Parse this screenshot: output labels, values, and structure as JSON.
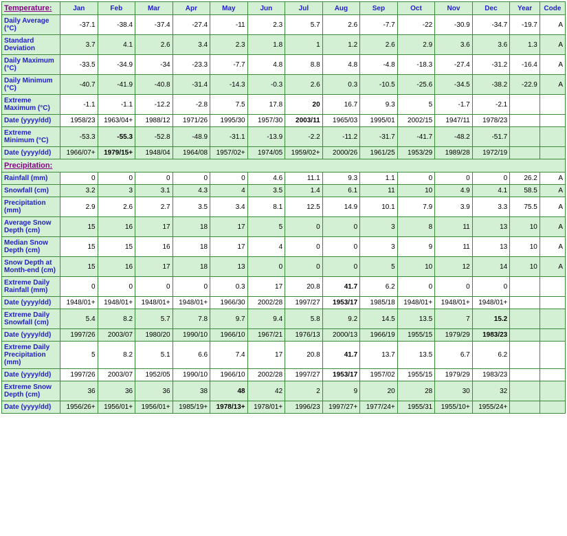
{
  "columns": [
    "Jan",
    "Feb",
    "Mar",
    "Apr",
    "May",
    "Jun",
    "Jul",
    "Aug",
    "Sep",
    "Oct",
    "Nov",
    "Dec",
    "Year",
    "Code"
  ],
  "sections": [
    {
      "title": "Temperature:",
      "class": "temp"
    },
    {
      "title": "Precipitation:",
      "class": "precip"
    }
  ],
  "temp_rows": [
    {
      "label": "Daily Average (°C)",
      "alt": true,
      "bold_idx": [],
      "vals": [
        "-37.1",
        "-38.4",
        "-37.4",
        "-27.4",
        "-11",
        "2.3",
        "5.7",
        "2.6",
        "-7.7",
        "-22",
        "-30.9",
        "-34.7",
        "-19.7",
        "A"
      ]
    },
    {
      "label": "Standard Deviation",
      "alt": true,
      "bold_idx": [],
      "vals": [
        "3.7",
        "4.1",
        "2.6",
        "3.4",
        "2.3",
        "1.8",
        "1",
        "1.2",
        "2.6",
        "2.9",
        "3.6",
        "3.6",
        "1.3",
        "A"
      ],
      "shade": true
    },
    {
      "label": "Daily Maximum (°C)",
      "alt": true,
      "bold_idx": [],
      "vals": [
        "-33.5",
        "-34.9",
        "-34",
        "-23.3",
        "-7.7",
        "4.8",
        "8.8",
        "4.8",
        "-4.8",
        "-18.3",
        "-27.4",
        "-31.2",
        "-16.4",
        "A"
      ]
    },
    {
      "label": "Daily Minimum (°C)",
      "alt": true,
      "bold_idx": [],
      "vals": [
        "-40.7",
        "-41.9",
        "-40.8",
        "-31.4",
        "-14.3",
        "-0.3",
        "2.6",
        "0.3",
        "-10.5",
        "-25.6",
        "-34.5",
        "-38.2",
        "-22.9",
        "A"
      ],
      "shade": true,
      "thick": true
    },
    {
      "label": "Extreme Maximum (°C)",
      "alt": false,
      "bold_idx": [
        6
      ],
      "vals": [
        "-1.1",
        "-1.1",
        "-12.2",
        "-2.8",
        "7.5",
        "17.8",
        "20",
        "16.7",
        "9.3",
        "5",
        "-1.7",
        "-2.1",
        "",
        ""
      ]
    },
    {
      "label": "Date (yyyy/dd)",
      "alt": false,
      "bold_idx": [
        6
      ],
      "vals": [
        "1958/23",
        "1963/04+",
        "1988/12",
        "1971/26",
        "1995/30",
        "1957/30",
        "2003/11",
        "1965/03",
        "1995/01",
        "2002/15",
        "1947/11",
        "1978/23",
        "",
        ""
      ]
    },
    {
      "label": "Extreme Minimum (°C)",
      "alt": false,
      "bold_idx": [
        1
      ],
      "vals": [
        "-53.3",
        "-55.3",
        "-52.8",
        "-48.9",
        "-31.1",
        "-13.9",
        "-2.2",
        "-11.2",
        "-31.7",
        "-41.7",
        "-48.2",
        "-51.7",
        "",
        ""
      ],
      "shade": true
    },
    {
      "label": "Date (yyyy/dd)",
      "alt": false,
      "bold_idx": [
        1
      ],
      "vals": [
        "1966/07+",
        "1979/15+",
        "1948/04",
        "1964/08",
        "1957/02+",
        "1974/05",
        "1959/02+",
        "2000/26",
        "1961/25",
        "1953/29",
        "1989/28",
        "1972/19",
        "",
        ""
      ],
      "shade": true,
      "thick": true
    }
  ],
  "precip_rows": [
    {
      "label": "Rainfall (mm)",
      "bold_idx": [],
      "vals": [
        "0",
        "0",
        "0",
        "0",
        "0",
        "4.6",
        "11.1",
        "9.3",
        "1.1",
        "0",
        "0",
        "0",
        "26.2",
        "A"
      ]
    },
    {
      "label": "Snowfall (cm)",
      "bold_idx": [],
      "vals": [
        "3.2",
        "3",
        "3.1",
        "4.3",
        "4",
        "3.5",
        "1.4",
        "6.1",
        "11",
        "10",
        "4.9",
        "4.1",
        "58.5",
        "A"
      ],
      "shade": true
    },
    {
      "label": "Precipitation (mm)",
      "bold_idx": [],
      "vals": [
        "2.9",
        "2.6",
        "2.7",
        "3.5",
        "3.4",
        "8.1",
        "12.5",
        "14.9",
        "10.1",
        "7.9",
        "3.9",
        "3.3",
        "75.5",
        "A"
      ]
    },
    {
      "label": "Average Snow Depth (cm)",
      "bold_idx": [],
      "vals": [
        "15",
        "16",
        "17",
        "18",
        "17",
        "5",
        "0",
        "0",
        "3",
        "8",
        "11",
        "13",
        "10",
        "A"
      ],
      "shade": true
    },
    {
      "label": "Median Snow Depth (cm)",
      "bold_idx": [],
      "vals": [
        "15",
        "15",
        "16",
        "18",
        "17",
        "4",
        "0",
        "0",
        "3",
        "9",
        "11",
        "13",
        "10",
        "A"
      ]
    },
    {
      "label": "Snow Depth at Month-end (cm)",
      "bold_idx": [],
      "vals": [
        "15",
        "16",
        "17",
        "18",
        "13",
        "0",
        "0",
        "0",
        "5",
        "10",
        "12",
        "14",
        "10",
        "A"
      ],
      "shade": true,
      "thick": true
    },
    {
      "label": "Extreme Daily Rainfall (mm)",
      "bold_idx": [
        7
      ],
      "vals": [
        "0",
        "0",
        "0",
        "0",
        "0.3",
        "17",
        "20.8",
        "41.7",
        "6.2",
        "0",
        "0",
        "0",
        "",
        ""
      ]
    },
    {
      "label": "Date (yyyy/dd)",
      "bold_idx": [
        7
      ],
      "vals": [
        "1948/01+",
        "1948/01+",
        "1948/01+",
        "1948/01+",
        "1966/30",
        "2002/28",
        "1997/27",
        "1953/17",
        "1985/18",
        "1948/01+",
        "1948/01+",
        "1948/01+",
        "",
        ""
      ]
    },
    {
      "label": "Extreme Daily Snowfall (cm)",
      "bold_idx": [
        11
      ],
      "vals": [
        "5.4",
        "8.2",
        "5.7",
        "7.8",
        "9.7",
        "9.4",
        "5.8",
        "9.2",
        "14.5",
        "13.5",
        "7",
        "15.2",
        "",
        ""
      ],
      "shade": true
    },
    {
      "label": "Date (yyyy/dd)",
      "bold_idx": [
        11
      ],
      "vals": [
        "1997/26",
        "2003/07",
        "1980/20",
        "1990/10",
        "1966/10",
        "1967/21",
        "1976/13",
        "2000/13",
        "1966/19",
        "1955/15",
        "1979/29",
        "1983/23",
        "",
        ""
      ],
      "shade": true
    },
    {
      "label": "Extreme Daily Precipitation (mm)",
      "bold_idx": [
        7
      ],
      "vals": [
        "5",
        "8.2",
        "5.1",
        "6.6",
        "7.4",
        "17",
        "20.8",
        "41.7",
        "13.7",
        "13.5",
        "6.7",
        "6.2",
        "",
        ""
      ]
    },
    {
      "label": "Date (yyyy/dd)",
      "bold_idx": [
        7
      ],
      "vals": [
        "1997/26",
        "2003/07",
        "1952/05",
        "1990/10",
        "1966/10",
        "2002/28",
        "1997/27",
        "1953/17",
        "1957/02",
        "1955/15",
        "1979/29",
        "1983/23",
        "",
        ""
      ]
    },
    {
      "label": "Extreme Snow Depth (cm)",
      "bold_idx": [
        4
      ],
      "vals": [
        "36",
        "36",
        "36",
        "38",
        "48",
        "42",
        "2",
        "9",
        "20",
        "28",
        "30",
        "32",
        "",
        ""
      ],
      "shade": true
    },
    {
      "label": "Date (yyyy/dd)",
      "bold_idx": [
        4
      ],
      "vals": [
        "1956/26+",
        "1956/01+",
        "1956/01+",
        "1985/19+",
        "1978/13+",
        "1978/01+",
        "1996/23",
        "1997/27+",
        "1977/24+",
        "1955/31",
        "1955/10+",
        "1955/24+",
        "",
        ""
      ],
      "shade": true
    }
  ]
}
